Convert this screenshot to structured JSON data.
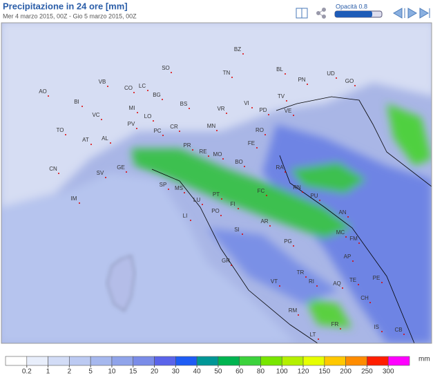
{
  "header": {
    "title": "Precipitazione in 24 ore [mm]",
    "subtitle": "Mer 4 marzo 2015, 00Z - Gio 5 marzo 2015, 00Z",
    "opacity_label": "Opacità 0.8"
  },
  "map": {
    "labels": [
      "BZ",
      "SO",
      "TN",
      "BL",
      "UD",
      "PN",
      "GO",
      "VB",
      "CO",
      "LC",
      "AO",
      "BG",
      "TV",
      "BI",
      "BS",
      "MI",
      "VR",
      "VI",
      "PD",
      "VE",
      "VC",
      "LO",
      "TO",
      "PV",
      "CR",
      "MN",
      "RO",
      "AT",
      "AL",
      "PC",
      "FE",
      "PR",
      "RE",
      "MO",
      "BO",
      "RA",
      "GE",
      "CN",
      "SV",
      "SP",
      "MS",
      "RN",
      "FC",
      "PT",
      "PU",
      "LU",
      "FI",
      "IM",
      "PO",
      "AN",
      "LI",
      "AR",
      "MC",
      "SI",
      "PG",
      "FM",
      "AP",
      "GR",
      "PE",
      "TR",
      "TE",
      "VT",
      "RI",
      "AQ",
      "CH",
      "RM",
      "FR",
      "IS",
      "CB",
      "LT"
    ]
  },
  "legend": {
    "unit": "mm",
    "ticks": [
      0.2,
      1,
      2,
      5,
      10,
      15,
      20,
      30,
      40,
      50,
      60,
      80,
      100,
      120,
      150,
      200,
      250,
      300
    ],
    "colors": [
      "#ffffff",
      "#e8eefb",
      "#d2dcf6",
      "#bccaf2",
      "#a6b8ee",
      "#90a4ea",
      "#7a8ce8",
      "#5a64ea",
      "#1e5cf5",
      "#009696",
      "#00b450",
      "#3cd23c",
      "#78e600",
      "#b4f000",
      "#e6ff00",
      "#ffc800",
      "#ff8c00",
      "#ff1e00",
      "#ff00ff"
    ]
  }
}
